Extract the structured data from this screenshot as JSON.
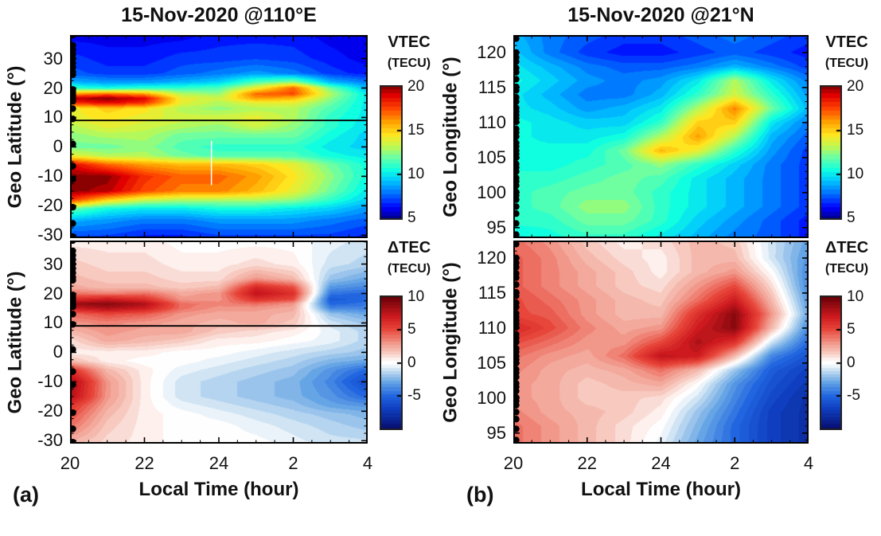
{
  "figure": {
    "panel_a_label": "(a)",
    "panel_b_label": "(b)",
    "stations": {
      "a": [
        38,
        34.5,
        33,
        31.5,
        30,
        28.5,
        27,
        25.5,
        24.5,
        19.5,
        18.5,
        17.5,
        16.5,
        15.5,
        13,
        9.5,
        1,
        -6.5,
        -11,
        -20.5,
        -26,
        -30.5
      ],
      "b": [
        122,
        120,
        119.3,
        118.7,
        117.8,
        117.2,
        116.2,
        115.1,
        114.6,
        113.6,
        113,
        112.1,
        111.6,
        111.1,
        110.6,
        110.1,
        109.1,
        108.6,
        108,
        107.1,
        106.6,
        106,
        105.5,
        105,
        104.1,
        103.6,
        103,
        102.1,
        101.6,
        101,
        100.1,
        99.6,
        99,
        98,
        97,
        95.6,
        94,
        93.3
      ]
    }
  },
  "colormaps": {
    "jet": {
      "domain": [
        5,
        20
      ],
      "stops": [
        [
          5,
          "#000090"
        ],
        [
          6.2,
          "#0000ff"
        ],
        [
          7.8,
          "#0070ff"
        ],
        [
          9.3,
          "#00c8ff"
        ],
        [
          10.5,
          "#10ffe0"
        ],
        [
          12,
          "#70ffa0"
        ],
        [
          13.2,
          "#c0f850"
        ],
        [
          14.5,
          "#ffe620"
        ],
        [
          16,
          "#ffa000"
        ],
        [
          17.5,
          "#ff4500"
        ],
        [
          19,
          "#e00000"
        ],
        [
          20,
          "#8b0000"
        ]
      ]
    },
    "rdbu": {
      "domain": [
        -10,
        10
      ],
      "stops": [
        [
          -10,
          "#070e6e"
        ],
        [
          -7,
          "#0f3fc0"
        ],
        [
          -5,
          "#2166e0"
        ],
        [
          -3,
          "#66a5e5"
        ],
        [
          -1.5,
          "#b5d4ef"
        ],
        [
          -0.4,
          "#f0f6fb"
        ],
        [
          0,
          "#ffffff"
        ],
        [
          0.4,
          "#fdf3f1"
        ],
        [
          1.5,
          "#f7c9bf"
        ],
        [
          3,
          "#f1988a"
        ],
        [
          5,
          "#e8463a"
        ],
        [
          7,
          "#ce1a1f"
        ],
        [
          10,
          "#650006"
        ]
      ]
    }
  },
  "chart_data": [
    {
      "id": "panel_a_vtec",
      "type": "heatmap",
      "title": "15-Nov-2020 @110°E",
      "xlabel": "Local Time (hour)",
      "ylabel": "Geo Latitude (°)",
      "colormap": "jet",
      "level_step": 0.5,
      "colorbar": {
        "title": "VTEC",
        "units": "(TECU)",
        "ticks": [
          20,
          15,
          10,
          5
        ],
        "range": [
          5,
          20
        ]
      },
      "x_local_time": [
        20,
        21,
        22,
        23,
        24,
        1,
        2,
        3,
        4
      ],
      "xlim": [
        20,
        28
      ],
      "x_tick_hours": [
        20,
        22,
        24,
        26,
        28
      ],
      "x_tick_labels": [
        "20",
        "22",
        "24",
        "2",
        "4"
      ],
      "x_minor_step": 0.5,
      "show_x_tick_labels": false,
      "y_grid": [
        38,
        30,
        25,
        22,
        20,
        18,
        16.5,
        15,
        13,
        10,
        7,
        4,
        0,
        -3,
        -6,
        -10,
        -15,
        -18,
        -21,
        -25,
        -31
      ],
      "ylim": [
        38,
        -31
      ],
      "y_ticks": [
        30,
        20,
        10,
        0,
        -10,
        -20,
        -30
      ],
      "y_major_step": 10,
      "y_minor_step": 2.5,
      "hline_y": 9,
      "artifact_line": {
        "x_hour": 23.8,
        "y_from": 2,
        "y_to": -13
      },
      "dots": "a",
      "values": [
        [
          6,
          6,
          6,
          6,
          6.5,
          6.5,
          6.5,
          6,
          5.8
        ],
        [
          7,
          6.5,
          6.5,
          7,
          7,
          7.2,
          7,
          6.5,
          6
        ],
        [
          7.5,
          7,
          7,
          7.5,
          8,
          8.5,
          8,
          7,
          6.5
        ],
        [
          9,
          8.5,
          8.5,
          9,
          9.5,
          11.5,
          12.5,
          9,
          8
        ],
        [
          11,
          10.5,
          11,
          11,
          11.5,
          14,
          17,
          12,
          9
        ],
        [
          16,
          17,
          16,
          13,
          12.5,
          17,
          17.5,
          13,
          10
        ],
        [
          19.5,
          20,
          19,
          14,
          13.5,
          16,
          15.5,
          12.5,
          10
        ],
        [
          18,
          19,
          18,
          14,
          13,
          14,
          14,
          12,
          10
        ],
        [
          14,
          15,
          14.5,
          13,
          12.5,
          13,
          13,
          11.5,
          10
        ],
        [
          14,
          14.5,
          14,
          13.5,
          13.5,
          14,
          13,
          11,
          10
        ],
        [
          13,
          14,
          13.5,
          13,
          12.5,
          13.5,
          12.5,
          11,
          9.8
        ],
        [
          12.5,
          13,
          13,
          12,
          12,
          12,
          12,
          10.5,
          9.5
        ],
        [
          12,
          12,
          12.5,
          11.5,
          11,
          11,
          11,
          10,
          9.5
        ],
        [
          14,
          13,
          13,
          12,
          11.5,
          11.5,
          11.5,
          10.5,
          10
        ],
        [
          19,
          17,
          16,
          15.5,
          15.5,
          15,
          14,
          12,
          10.5
        ],
        [
          20,
          20,
          18,
          17,
          17,
          16,
          14.5,
          12.5,
          10.5
        ],
        [
          20,
          19.5,
          17.5,
          16.5,
          16.5,
          15.5,
          14,
          12,
          10
        ],
        [
          18,
          15,
          13.5,
          13,
          13,
          13,
          12.5,
          11,
          9.5
        ],
        [
          12,
          10.5,
          10,
          10,
          10.5,
          10.5,
          10,
          9.5,
          8.5
        ],
        [
          9,
          8.5,
          8,
          8,
          8.5,
          8.5,
          8.5,
          8,
          7.5
        ],
        [
          7,
          7,
          6.5,
          6.5,
          7,
          7,
          7,
          7,
          6.5
        ]
      ]
    },
    {
      "id": "panel_a_dtec",
      "type": "heatmap",
      "title": "15-Nov-2020 @110°E",
      "xlabel": "Local Time (hour)",
      "ylabel": "Geo Latitude (°)",
      "colormap": "rdbu",
      "level_step": 0.5,
      "colorbar": {
        "title": "ΔTEC",
        "units": "(TECU)",
        "ticks": [
          10,
          5,
          0,
          -5
        ],
        "range": [
          -10,
          10
        ]
      },
      "x_local_time": [
        20,
        21,
        22,
        23,
        24,
        1,
        2,
        3,
        4
      ],
      "xlim": [
        20,
        28
      ],
      "x_tick_hours": [
        20,
        22,
        24,
        26,
        28
      ],
      "x_tick_labels": [
        "20",
        "22",
        "24",
        "2",
        "4"
      ],
      "x_minor_step": 0.5,
      "show_x_tick_labels": true,
      "y_grid": [
        38,
        30,
        25,
        22,
        20,
        18,
        16.5,
        15,
        13,
        10,
        7,
        4,
        0,
        -3,
        -6,
        -10,
        -15,
        -18,
        -21,
        -25,
        -31
      ],
      "ylim": [
        38,
        -31
      ],
      "y_ticks": [
        30,
        20,
        10,
        0,
        -10,
        -20,
        -30
      ],
      "y_major_step": 10,
      "y_minor_step": 2.5,
      "hline_y": 9,
      "dots": "a",
      "values": [
        [
          0.5,
          0.5,
          0.5,
          0,
          0,
          0,
          0,
          -0.5,
          -1
        ],
        [
          1.5,
          1,
          1,
          0.5,
          0.5,
          1,
          0.5,
          -1,
          -1.5
        ],
        [
          2,
          1.5,
          1.5,
          1,
          1,
          3,
          2,
          -2,
          -3
        ],
        [
          2.5,
          2,
          2,
          1.5,
          2,
          6.5,
          5,
          -3.5,
          -4
        ],
        [
          4,
          3.5,
          4,
          2.5,
          3,
          7.5,
          6,
          -4.5,
          -5
        ],
        [
          6,
          7,
          6,
          3,
          3,
          6,
          5,
          -5.5,
          -5
        ],
        [
          8.5,
          9,
          8,
          4,
          3.5,
          4,
          3,
          -5,
          -4.5
        ],
        [
          7,
          8,
          7,
          4,
          3,
          3,
          2.5,
          -4,
          -4
        ],
        [
          4,
          5,
          4.5,
          3,
          2.5,
          2.5,
          2,
          -2,
          -3
        ],
        [
          3,
          3.5,
          3,
          2.5,
          2,
          2.5,
          1.5,
          -1,
          -2
        ],
        [
          2,
          3,
          2.5,
          2.5,
          1.5,
          1,
          0.5,
          -0.5,
          -1.5
        ],
        [
          1,
          2.5,
          2,
          1.5,
          0.5,
          0.5,
          0,
          -0.5,
          -1.5
        ],
        [
          0.5,
          0.5,
          0.5,
          0,
          0,
          -0.5,
          -1,
          -1.5,
          -2
        ],
        [
          2,
          0.5,
          0,
          0,
          -0.5,
          -1,
          -1.5,
          -2.5,
          -3
        ],
        [
          6,
          2,
          0.5,
          -0.5,
          -1,
          -1.5,
          -2,
          -3.5,
          -5
        ],
        [
          8.5,
          3,
          0.5,
          -1,
          -1.5,
          -2,
          -2.5,
          -4,
          -6.5
        ],
        [
          8,
          3,
          0.5,
          -1,
          -1.5,
          -2,
          -2.5,
          -3.5,
          -5
        ],
        [
          6,
          2.5,
          0.5,
          -0.5,
          -1,
          -1.5,
          -2,
          -3,
          -3.5
        ],
        [
          5,
          2,
          0.5,
          0,
          -0.5,
          -1,
          -1.5,
          -2,
          -2.5
        ],
        [
          4,
          1.5,
          0.5,
          0,
          0,
          -0.5,
          -1,
          -1.5,
          -2
        ],
        [
          2,
          1,
          0.5,
          0,
          0,
          0,
          -0.5,
          -1,
          -1
        ]
      ]
    },
    {
      "id": "panel_b_vtec",
      "type": "heatmap",
      "title": "15-Nov-2020 @21°N",
      "xlabel": "Local Time (hour)",
      "ylabel": "Geo Longitude (°)",
      "colormap": "jet",
      "level_step": 0.5,
      "colorbar": {
        "title": "VTEC",
        "units": "(TECU)",
        "ticks": [
          20,
          15,
          10,
          5
        ],
        "range": [
          5,
          20
        ]
      },
      "x_local_time": [
        20,
        21,
        22,
        23,
        24,
        1,
        2,
        3,
        4
      ],
      "xlim": [
        20,
        28
      ],
      "x_tick_hours": [
        20,
        22,
        24,
        26,
        28
      ],
      "x_tick_labels": [
        "20",
        "22",
        "24",
        "2",
        "4"
      ],
      "x_minor_step": 0.5,
      "show_x_tick_labels": false,
      "y_grid": [
        122.5,
        120,
        118,
        116,
        114,
        112,
        110,
        108,
        106,
        104,
        102,
        100,
        98,
        96,
        93.5
      ],
      "ylim": [
        122.5,
        93.5
      ],
      "y_ticks": [
        120,
        115,
        110,
        105,
        100,
        95
      ],
      "y_major_step": 5,
      "y_minor_step": 1,
      "dots": "b",
      "values": [
        [
          9,
          8,
          7.5,
          7,
          7,
          7.5,
          8,
          7.5,
          7
        ],
        [
          9.5,
          8,
          7,
          6.5,
          6.5,
          7,
          7.5,
          7,
          6.5
        ],
        [
          10,
          9,
          8,
          7.5,
          7.5,
          8,
          9,
          8,
          7
        ],
        [
          10.5,
          9.5,
          8.5,
          8,
          8.5,
          10,
          13,
          10,
          8
        ],
        [
          10,
          9,
          8,
          8,
          9,
          11,
          13.5,
          11,
          8.5
        ],
        [
          10,
          9.5,
          8.5,
          9,
          10,
          13,
          16.5,
          12,
          9
        ],
        [
          10.5,
          10,
          9.5,
          9.5,
          11,
          15,
          15,
          10,
          8
        ],
        [
          10.5,
          10,
          10,
          10.5,
          13,
          16,
          13,
          9,
          7.5
        ],
        [
          10.5,
          10.5,
          10.5,
          12,
          15.5,
          14,
          11,
          8.5,
          7
        ],
        [
          10.5,
          10.5,
          11,
          11.5,
          12.5,
          11,
          9.5,
          8,
          7
        ],
        [
          11,
          11,
          11.5,
          12,
          11.5,
          10,
          9,
          8,
          7
        ],
        [
          11,
          11.5,
          12,
          12,
          11,
          10,
          9,
          8,
          7
        ],
        [
          11,
          11.5,
          12.5,
          12.5,
          11,
          10,
          9,
          8,
          7
        ],
        [
          11,
          11,
          12,
          12,
          11,
          9.5,
          8.5,
          7.5,
          6.5
        ],
        [
          10,
          10.5,
          11,
          11,
          10,
          9,
          8,
          7.5,
          6.5
        ]
      ]
    },
    {
      "id": "panel_b_dtec",
      "type": "heatmap",
      "title": "15-Nov-2020 @21°N",
      "xlabel": "Local Time (hour)",
      "ylabel": "Geo Longitude (°)",
      "colormap": "rdbu",
      "level_step": 0.5,
      "colorbar": {
        "title": "ΔTEC",
        "units": "(TECU)",
        "ticks": [
          10,
          5,
          0,
          -5
        ],
        "range": [
          -10,
          10
        ]
      },
      "x_local_time": [
        20,
        21,
        22,
        23,
        24,
        1,
        2,
        3,
        4
      ],
      "xlim": [
        20,
        28
      ],
      "x_tick_hours": [
        20,
        22,
        24,
        26,
        28
      ],
      "x_tick_labels": [
        "20",
        "22",
        "24",
        "2",
        "4"
      ],
      "x_minor_step": 0.5,
      "show_x_tick_labels": true,
      "y_grid": [
        122.5,
        120,
        118,
        116,
        114,
        112,
        110,
        108,
        106,
        104,
        102,
        100,
        98,
        96,
        93.5
      ],
      "ylim": [
        122.5,
        93.5
      ],
      "y_ticks": [
        120,
        115,
        110,
        105,
        100,
        95
      ],
      "y_major_step": 5,
      "y_minor_step": 1,
      "dots": "b",
      "values": [
        [
          4,
          3,
          1.5,
          0.5,
          1,
          2,
          1.5,
          -1,
          -3
        ],
        [
          4.5,
          3.5,
          2,
          1,
          0.5,
          2,
          2,
          -1,
          -3.5
        ],
        [
          4.5,
          3.5,
          2.5,
          1.5,
          0.5,
          2,
          3,
          0,
          -4
        ],
        [
          4.5,
          3.5,
          2.5,
          1.5,
          1,
          3,
          5,
          1,
          -4
        ],
        [
          5,
          4,
          3,
          2,
          1.5,
          4,
          7,
          2,
          -3.5
        ],
        [
          5,
          4.5,
          3,
          2,
          2,
          6,
          9,
          3,
          -3
        ],
        [
          6.5,
          5,
          3.5,
          2.5,
          3,
          7,
          9,
          2,
          -4
        ],
        [
          5,
          4,
          3,
          3,
          5,
          8,
          6,
          -1,
          -5
        ],
        [
          4,
          3,
          2.5,
          4,
          7.5,
          7,
          2,
          -4,
          -6
        ],
        [
          3.5,
          2.5,
          2,
          2.5,
          4,
          2,
          -2,
          -5.5,
          -7
        ],
        [
          3,
          2.5,
          1.5,
          2,
          2.5,
          0,
          -3.5,
          -6,
          -7.5
        ],
        [
          3,
          2.5,
          1.5,
          1.5,
          1,
          -1,
          -4,
          -6.5,
          -8
        ],
        [
          3.5,
          2.5,
          2,
          1.5,
          0.5,
          -2,
          -4.5,
          -7,
          -8
        ],
        [
          4,
          3,
          2,
          1,
          0,
          -2.5,
          -5,
          -7,
          -8
        ],
        [
          4,
          3,
          2,
          1,
          -0.5,
          -3,
          -5,
          -7,
          -8
        ]
      ]
    }
  ]
}
